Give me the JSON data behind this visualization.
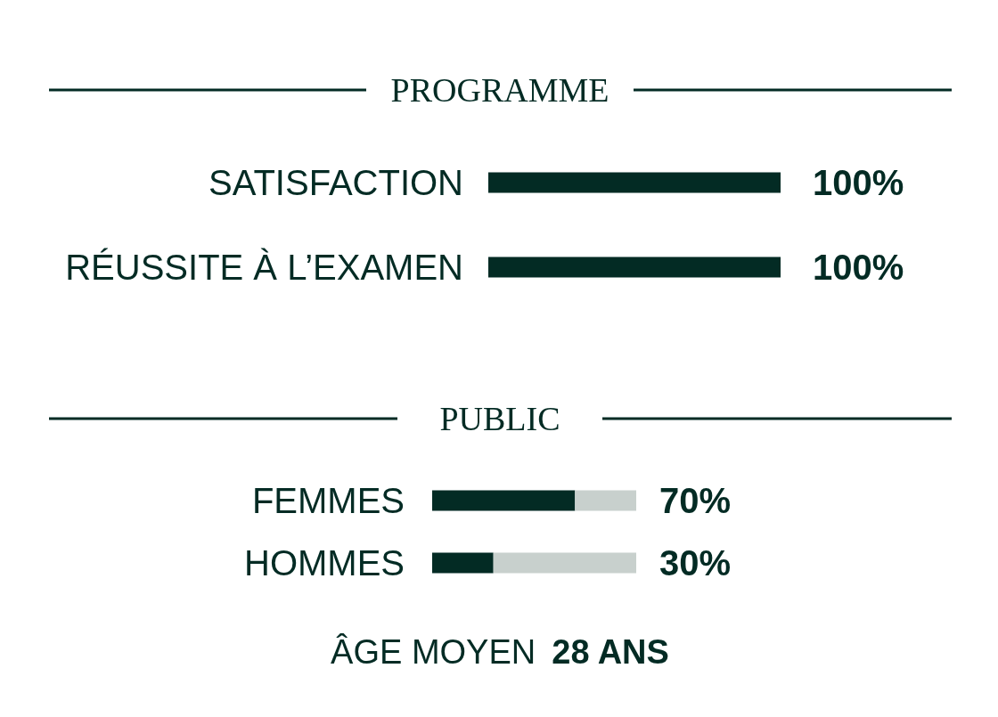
{
  "chart_data": [
    {
      "type": "bar",
      "title": "PROGRAMME",
      "orientation": "horizontal",
      "categories": [
        "SATISFACTION",
        "RÉUSSITE À L’EXAMEN"
      ],
      "series": [
        {
          "color": "#032b24",
          "values": [
            100,
            100
          ],
          "value_labels": [
            "100%",
            "100%"
          ]
        }
      ]
    },
    {
      "type": "bar",
      "title": "PUBLIC",
      "orientation": "horizontal",
      "stacked": true,
      "categories": [
        "FEMMES",
        "HOMMES"
      ],
      "xlim": [
        0,
        100
      ],
      "series": [
        {
          "color": "#032b24",
          "values": [
            70,
            30
          ],
          "value_labels": [
            "70%",
            "30%"
          ]
        },
        {
          "color": "#c8d0cd",
          "values": [
            30,
            70
          ]
        }
      ],
      "annotations": [
        "ÂGE MOYEN",
        "28 ANS"
      ]
    }
  ]
}
